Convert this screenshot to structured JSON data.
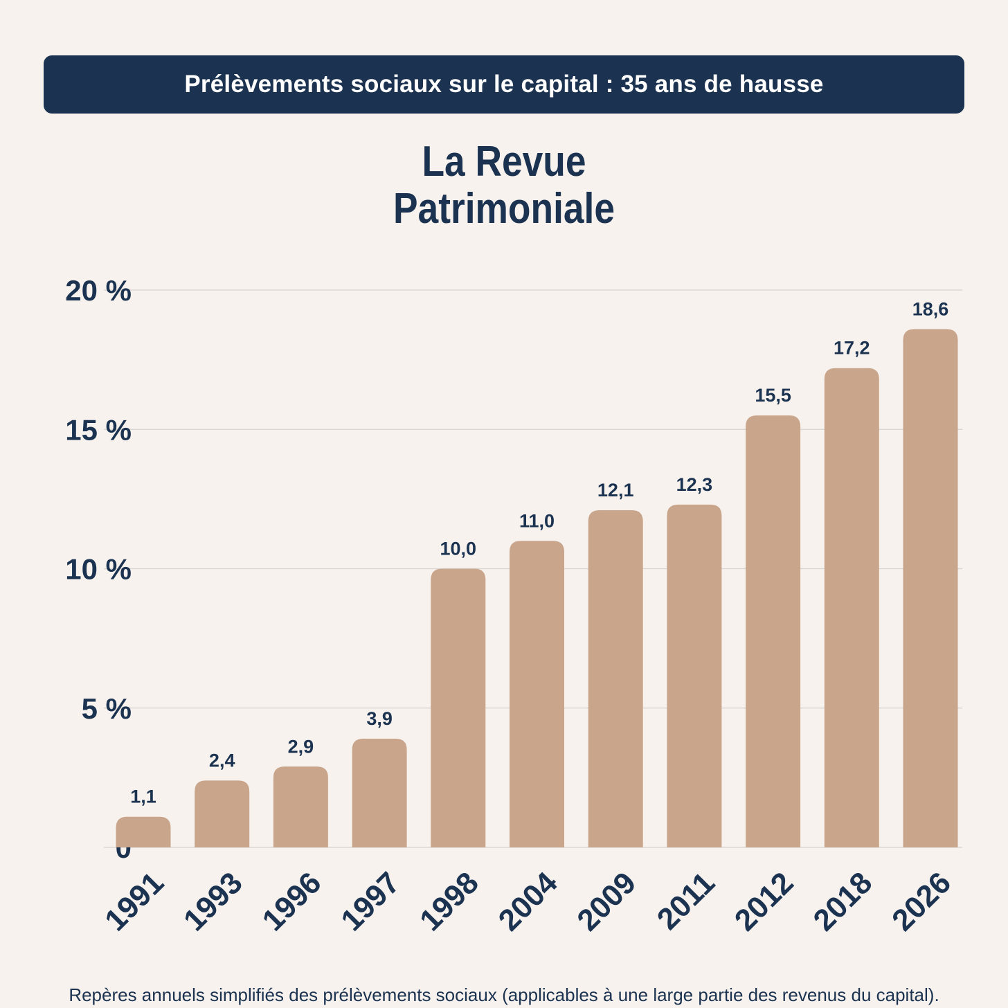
{
  "banner": {
    "title": "Prélèvements sociaux sur le capital : 35 ans de hausse"
  },
  "brand": {
    "line1": "La Revue",
    "line2": "Patrimoniale"
  },
  "footnote": "Repères annuels simplifiés des prélèvements sociaux (applicables à une large partie des revenus du capital).",
  "colors": {
    "bar": "#c9a58b",
    "text": "#1b3350",
    "grid": "#d6d2cf",
    "background": "#f7f2ee"
  },
  "chart_data": {
    "type": "bar",
    "title": "",
    "xlabel": "",
    "ylabel": "",
    "categories": [
      "1991",
      "1993",
      "1996",
      "1997",
      "1998",
      "2004",
      "2009",
      "2011",
      "2012",
      "2018",
      "2026"
    ],
    "values": [
      1.1,
      2.4,
      2.9,
      3.9,
      10.0,
      11.0,
      12.1,
      12.3,
      15.5,
      17.2,
      18.6
    ],
    "value_labels": [
      "1,1",
      "2,4",
      "2,9",
      "3,9",
      "10,0",
      "11,0",
      "12,1",
      "12,3",
      "15,5",
      "17,2",
      "18,6"
    ],
    "ylim": [
      0,
      20
    ],
    "yticks": [
      0,
      5,
      10,
      15,
      20
    ],
    "ytick_labels": [
      "0",
      "5 %",
      "10 %",
      "15 %",
      "20 %"
    ],
    "grid": true,
    "legend": "none"
  }
}
